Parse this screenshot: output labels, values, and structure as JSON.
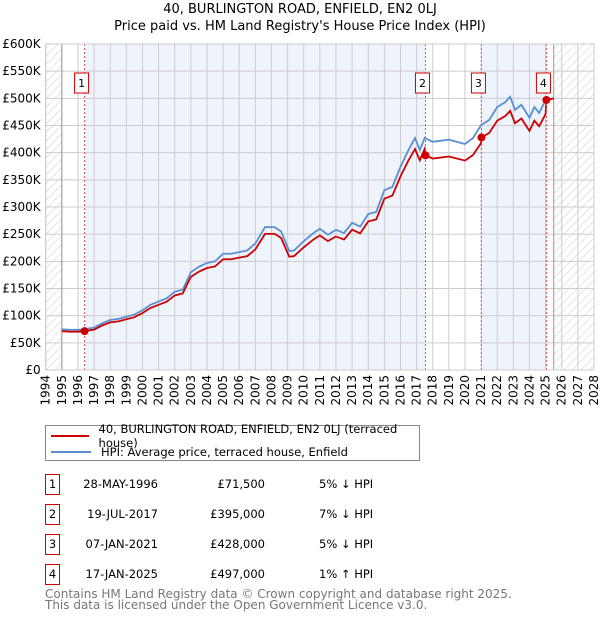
{
  "title": "40, BURLINGTON ROAD, ENFIELD, EN2 0LJ",
  "subtitle": "Price paid vs. HM Land Registry's House Price Index (HPI)",
  "chart_data": {
    "type": "line",
    "xlim": [
      1994,
      2028
    ],
    "ylim": [
      0,
      600000
    ],
    "ytick_labels": [
      "£0",
      "£50K",
      "£100K",
      "£150K",
      "£200K",
      "£250K",
      "£300K",
      "£350K",
      "£400K",
      "£450K",
      "£500K",
      "£550K",
      "£600K"
    ],
    "xtick_labels": [
      "1994",
      "1995",
      "1996",
      "1997",
      "1998",
      "1999",
      "2000",
      "2001",
      "2002",
      "2003",
      "2004",
      "2005",
      "2006",
      "2007",
      "2008",
      "2009",
      "2010",
      "2011",
      "2012",
      "2013",
      "2014",
      "2015",
      "2016",
      "2017",
      "2018",
      "2019",
      "2020",
      "2021",
      "2022",
      "2023",
      "2024",
      "2025",
      "2026",
      "2027",
      "2028"
    ],
    "data_range": [
      1995,
      2025.5
    ],
    "hpi_series": {
      "name": "HPI: Average price, terraced house, Enfield",
      "color": "#5b8fd4",
      "x": [
        1995,
        1995.5,
        1996,
        1996.4,
        1997,
        1997.5,
        1998,
        1998.5,
        1999,
        1999.5,
        2000,
        2000.5,
        2001,
        2001.5,
        2002,
        2002.5,
        2003,
        2003.5,
        2004,
        2004.5,
        2005,
        2005.5,
        2006,
        2006.5,
        2007,
        2007.6,
        2008.2,
        2008.6,
        2009.1,
        2009.4,
        2010,
        2010.6,
        2011,
        2011.5,
        2012,
        2012.5,
        2013,
        2013.5,
        2014,
        2014.5,
        2015,
        2015.5,
        2016,
        2016.5,
        2016.9,
        2017.2,
        2017.5,
        2018,
        2019,
        2020,
        2020.5,
        2021,
        2021.5,
        2022,
        2022.5,
        2022.8,
        2023.1,
        2023.5,
        2024,
        2024.3,
        2024.6,
        2025,
        2025.5
      ],
      "y": [
        75000,
        74000,
        74000,
        75000,
        78000,
        86000,
        92000,
        94000,
        98000,
        102000,
        110000,
        120000,
        126000,
        132000,
        144000,
        148000,
        180000,
        190000,
        197000,
        200000,
        214000,
        214000,
        217000,
        220000,
        233000,
        263000,
        263000,
        255000,
        219000,
        220000,
        237000,
        252000,
        260000,
        249000,
        258000,
        252000,
        271000,
        264000,
        287000,
        291000,
        331000,
        337000,
        374000,
        405000,
        427000,
        405000,
        427000,
        420000,
        424000,
        416000,
        427000,
        451000,
        460000,
        484000,
        493000,
        503000,
        479000,
        488000,
        464000,
        484000,
        473000,
        497000,
        500000
      ]
    },
    "property_series": {
      "name": "40, BURLINGTON ROAD, ENFIELD, EN2 0LJ (terraced house)",
      "color": "#cc0000"
    },
    "sales": [
      {
        "n": "1",
        "x": 1996.41,
        "date": "28-MAY-1996",
        "price": 71500,
        "price_label": "£71,500",
        "hpi": "5% ↓ HPI"
      },
      {
        "n": "2",
        "x": 2017.55,
        "date": "19-JUL-2017",
        "price": 395000,
        "price_label": "£395,000",
        "hpi": "7% ↓ HPI"
      },
      {
        "n": "3",
        "x": 2021.02,
        "date": "07-JAN-2021",
        "price": 428000,
        "price_label": "£428,000",
        "hpi": "5% ↓ HPI"
      },
      {
        "n": "4",
        "x": 2025.05,
        "date": "17-JAN-2025",
        "price": 497000,
        "price_label": "£497,000",
        "hpi": "1% ↑ HPI"
      }
    ]
  },
  "legend": {
    "property": "40, BURLINGTON ROAD, ENFIELD, EN2 0LJ (terraced house)",
    "hpi": "HPI: Average price, terraced house, Enfield"
  },
  "footer": [
    "Contains HM Land Registry data © Crown copyright and database right 2025.",
    "This data is licensed under the Open Government Licence v3.0."
  ]
}
